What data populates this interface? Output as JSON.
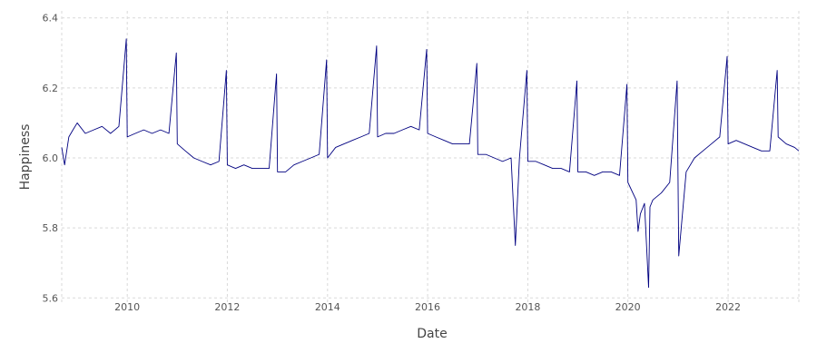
{
  "chart_data": {
    "type": "line",
    "title": "",
    "xlabel": "Date",
    "ylabel": "Happiness",
    "x_axis": "date",
    "xlim": [
      "2008-09-10",
      "2023-06-01"
    ],
    "ylim": [
      5.58,
      6.42
    ],
    "x_ticks": [
      "2010",
      "2012",
      "2014",
      "2016",
      "2018",
      "2020",
      "2022"
    ],
    "y_ticks": [
      "5.6",
      "5.8",
      "6.0",
      "6.2",
      "6.4"
    ],
    "grid": true,
    "legend": "none",
    "series_color": "#000080",
    "series": [
      {
        "x": [
          "2008-09-10",
          "2008-10-01",
          "2008-11-01",
          "2008-12-01",
          "2009-01-01",
          "2009-03-01",
          "2009-05-01",
          "2009-07-01",
          "2009-09-01",
          "2009-11-01",
          "2009-12-25",
          "2010-01-01",
          "2010-03-01",
          "2010-05-01",
          "2010-07-01",
          "2010-09-01",
          "2010-11-01",
          "2010-12-25",
          "2011-01-01",
          "2011-03-01",
          "2011-05-01",
          "2011-07-01",
          "2011-09-01",
          "2011-11-01",
          "2011-12-25",
          "2012-01-01",
          "2012-03-01",
          "2012-05-01",
          "2012-07-01",
          "2012-09-01",
          "2012-11-01",
          "2012-12-25",
          "2013-01-01",
          "2013-03-01",
          "2013-05-01",
          "2013-07-01",
          "2013-09-01",
          "2013-11-01",
          "2013-12-25",
          "2014-01-01",
          "2014-03-01",
          "2014-05-01",
          "2014-07-01",
          "2014-09-01",
          "2014-11-01",
          "2014-12-25",
          "2015-01-01",
          "2015-03-01",
          "2015-05-01",
          "2015-07-01",
          "2015-09-01",
          "2015-11-01",
          "2015-12-25",
          "2016-01-01",
          "2016-03-01",
          "2016-05-01",
          "2016-07-01",
          "2016-09-01",
          "2016-11-01",
          "2016-12-25",
          "2017-01-01",
          "2017-03-01",
          "2017-05-01",
          "2017-07-01",
          "2017-09-01",
          "2017-10-02",
          "2017-11-01",
          "2017-12-25",
          "2018-01-01",
          "2018-03-01",
          "2018-05-01",
          "2018-07-01",
          "2018-09-01",
          "2018-11-01",
          "2018-12-25",
          "2019-01-01",
          "2019-03-01",
          "2019-05-01",
          "2019-07-01",
          "2019-09-01",
          "2019-11-01",
          "2019-12-25",
          "2020-01-01",
          "2020-03-01",
          "2020-03-15",
          "2020-04-01",
          "2020-05-01",
          "2020-05-31",
          "2020-06-10",
          "2020-07-01",
          "2020-09-01",
          "2020-11-01",
          "2020-12-25",
          "2021-01-06",
          "2021-03-01",
          "2021-05-01",
          "2021-07-01",
          "2021-09-01",
          "2021-11-01",
          "2021-12-25",
          "2022-01-01",
          "2022-03-01",
          "2022-05-01",
          "2022-07-01",
          "2022-09-01",
          "2022-11-01",
          "2022-12-25",
          "2023-01-01",
          "2023-03-01",
          "2023-05-01",
          "2023-06-01"
        ],
        "y": [
          6.03,
          5.98,
          6.06,
          6.08,
          6.1,
          6.07,
          6.08,
          6.09,
          6.07,
          6.09,
          6.34,
          6.06,
          6.07,
          6.08,
          6.07,
          6.08,
          6.07,
          6.3,
          6.04,
          6.02,
          6.0,
          5.99,
          5.98,
          5.99,
          6.25,
          5.98,
          5.97,
          5.98,
          5.97,
          5.97,
          5.97,
          6.24,
          5.96,
          5.96,
          5.98,
          5.99,
          6.0,
          6.01,
          6.28,
          6.0,
          6.03,
          6.04,
          6.05,
          6.06,
          6.07,
          6.32,
          6.06,
          6.07,
          6.07,
          6.08,
          6.09,
          6.08,
          6.31,
          6.07,
          6.06,
          6.05,
          6.04,
          6.04,
          6.04,
          6.27,
          6.01,
          6.01,
          6.0,
          5.99,
          6.0,
          5.75,
          6.0,
          6.25,
          5.99,
          5.99,
          5.98,
          5.97,
          5.97,
          5.96,
          6.22,
          5.96,
          5.96,
          5.95,
          5.96,
          5.96,
          5.95,
          6.21,
          5.93,
          5.88,
          5.79,
          5.84,
          5.87,
          5.63,
          5.86,
          5.88,
          5.9,
          5.93,
          6.22,
          5.72,
          5.96,
          6.0,
          6.02,
          6.04,
          6.06,
          6.29,
          6.04,
          6.05,
          6.04,
          6.03,
          6.02,
          6.02,
          6.25,
          6.06,
          6.04,
          6.03,
          6.02
        ]
      }
    ]
  }
}
